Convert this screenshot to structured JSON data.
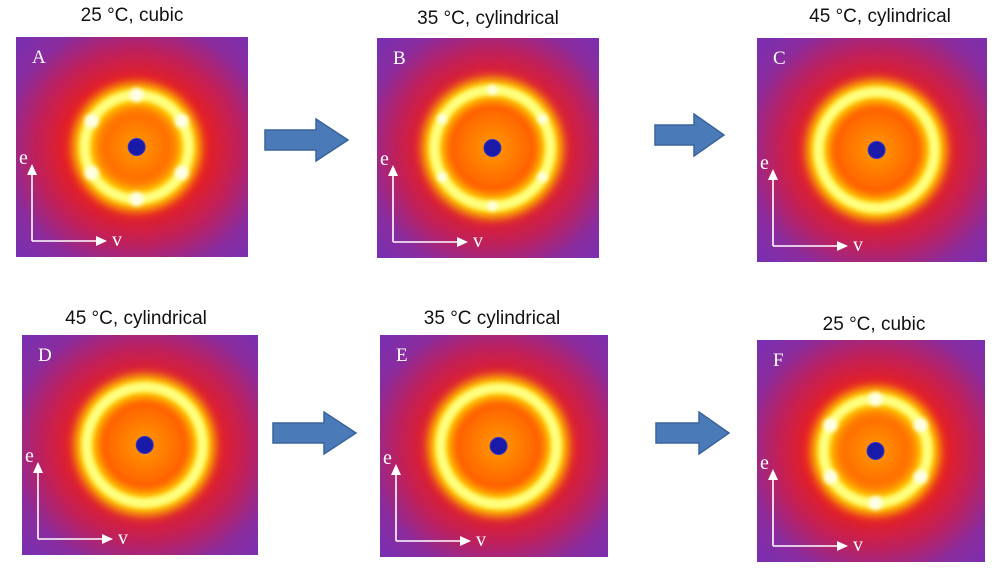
{
  "panels": [
    {
      "label": "A",
      "title": "25 °C, cubic",
      "phase": "cubic"
    },
    {
      "label": "B",
      "title": "35 °C, cylindrical",
      "phase": "cylindrical-spots"
    },
    {
      "label": "C",
      "title": "45 °C, cylindrical",
      "phase": "cylindrical"
    },
    {
      "label": "D",
      "title": "45 °C, cylindrical",
      "phase": "cylindrical"
    },
    {
      "label": "E",
      "title": "35 °C cylindrical",
      "phase": "cylindrical"
    },
    {
      "label": "F",
      "title": "25 °C, cubic",
      "phase": "cubic"
    }
  ],
  "axes": {
    "vertical": "e",
    "horizontal": "v"
  },
  "colors": {
    "arrow": "#4a7ab8",
    "background": "#7a2fb0",
    "ring": "#ffff80",
    "beamstop": "#1a1aa8"
  }
}
